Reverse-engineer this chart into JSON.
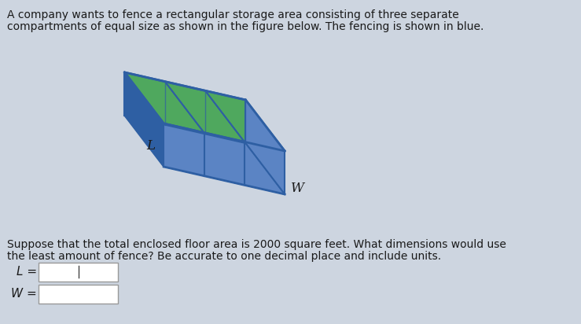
{
  "background_color": "#cdd5e0",
  "text_color": "#1a1a1a",
  "title_text1": "A company wants to fence a rectangular storage area consisting of three separate",
  "title_text2": "compartments of equal size as shown in the figure below. The fencing is shown in blue.",
  "bottom_text1": "Suppose that the total enclosed floor area is 2000 square feet. What dimensions would use",
  "bottom_text2": "the least amount of fence? Be accurate to one decimal place and include units.",
  "label_L": "L",
  "label_W": "W",
  "label_L_eq": "L =",
  "label_W_eq": "W =",
  "blue_dark": "#2e5fa3",
  "blue_mid": "#5b84c4",
  "blue_light": "#8aafd6",
  "blue_inner": "#9ab8d8",
  "green_top": "#4fa85e",
  "font_size_text": 10.0,
  "font_size_label": 11
}
